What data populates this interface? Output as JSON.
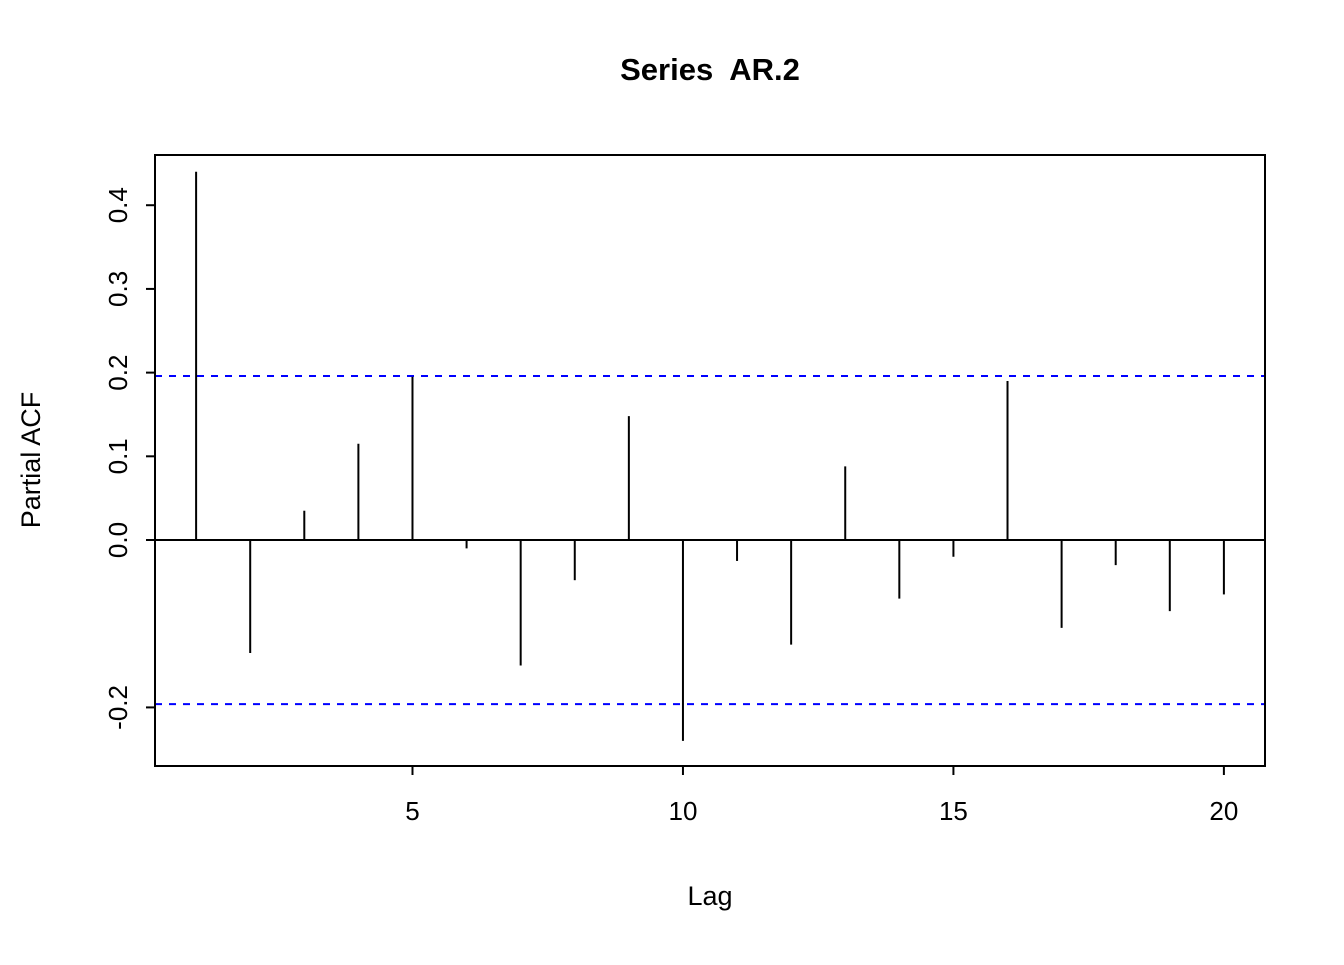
{
  "chart_data": {
    "type": "bar",
    "subtype": "pacf-stick-plot",
    "title": "Series  AR.2",
    "xlabel": "Lag",
    "ylabel": "Partial ACF",
    "x": [
      1,
      2,
      3,
      4,
      5,
      6,
      7,
      8,
      9,
      10,
      11,
      12,
      13,
      14,
      15,
      16,
      17,
      18,
      19,
      20
    ],
    "values": [
      0.44,
      -0.135,
      0.035,
      0.115,
      0.195,
      -0.01,
      -0.15,
      -0.048,
      0.148,
      -0.24,
      -0.025,
      -0.125,
      0.088,
      -0.07,
      -0.02,
      0.19,
      -0.105,
      -0.03,
      -0.085,
      -0.065
    ],
    "confidence_band": 0.196,
    "confidence_band_style": "dashed",
    "confidence_band_color": "#0000ff",
    "bar_color": "#000000",
    "axis_color": "#000000",
    "background_color": "#ffffff",
    "xlim": [
      0.24,
      20.76
    ],
    "ylim": [
      -0.27,
      0.46
    ],
    "x_ticks": [
      5,
      10,
      15,
      20
    ],
    "x_tick_labels": [
      "5",
      "10",
      "15",
      "20"
    ],
    "y_ticks": [
      -0.2,
      0.0,
      0.1,
      0.2,
      0.3,
      0.4
    ],
    "y_tick_labels": [
      "-0.2",
      "0.0",
      "0.1",
      "0.2",
      "0.3",
      "0.4"
    ],
    "grid": false,
    "legend": null
  }
}
